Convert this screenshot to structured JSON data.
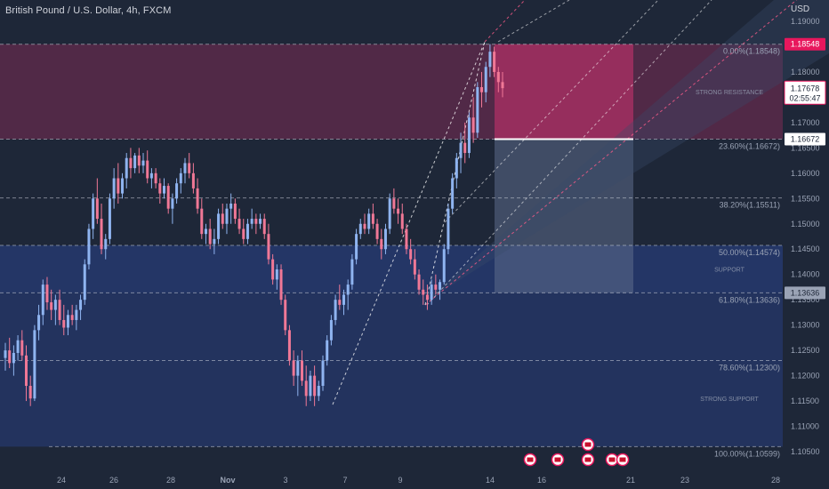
{
  "header": {
    "symbol_title": "British Pound / U.S. Dollar, 4h, FXCM",
    "currency": "USD"
  },
  "colors": {
    "background": "#1e2738",
    "up_candle": "#8fb4f0",
    "down_candle": "#f07896",
    "resistance_zone": "#5a2a4a",
    "support_zone": "#25386b",
    "short_target": "#a72f63",
    "short_risk": "#5c6b8a",
    "channel_fill": "#3a4a6b",
    "channel_line": "#ff5c8a",
    "trend_line": "#ffffff",
    "current_price_tag": "#e8175d",
    "axis_text": "#9aa3b5"
  },
  "chart_data": {
    "type": "candlestick",
    "price_axis": {
      "ticks": [
        "1.19000",
        "1.18000",
        "1.17000",
        "1.16500",
        "1.16000",
        "1.15500",
        "1.15000",
        "1.14500",
        "1.14000",
        "1.13500",
        "1.13000",
        "1.12500",
        "1.12000",
        "1.11500",
        "1.11000",
        "1.10500"
      ],
      "range": [
        1.103,
        1.193
      ]
    },
    "time_axis": {
      "ticks": [
        "24",
        "26",
        "28",
        "Nov",
        "3",
        "7",
        "9",
        "14",
        "16",
        "21",
        "23",
        "28"
      ]
    },
    "price_tags": [
      {
        "label": "1.18548",
        "value": 1.18548,
        "style": "pink"
      },
      {
        "label": "1.17678",
        "sublabel": "02:55:47",
        "value": 1.17678,
        "style": "current"
      },
      {
        "label": "1.16672",
        "value": 1.16672,
        "style": "white"
      },
      {
        "label": "1.13636",
        "value": 1.13636,
        "style": "grey"
      }
    ],
    "fib_levels": [
      {
        "label": "0.00%(1.18548)",
        "value": 1.18548
      },
      {
        "label": "23.60%(1.16672)",
        "value": 1.16672
      },
      {
        "label": "38.20%(1.15511)",
        "value": 1.15511
      },
      {
        "label": "50.00%(1.14574)",
        "value": 1.14574
      },
      {
        "label": "61.80%(1.13636)",
        "value": 1.13636
      },
      {
        "label": "78.60%(1.12300)",
        "value": 1.123
      },
      {
        "label": "100.00%(1.10599)",
        "value": 1.10599
      }
    ],
    "zones": [
      {
        "label": "STRONG RESISTANCE",
        "from": 1.18548,
        "to": 1.16672,
        "kind": "resistance"
      },
      {
        "label": "SUPPORT",
        "from": 1.14574,
        "to": 1.13636,
        "kind": "support"
      },
      {
        "label": "STRONG SUPPORT",
        "from": 1.13636,
        "to": 1.10599,
        "kind": "support"
      }
    ],
    "short_position": {
      "entry": 1.16672,
      "stop": 1.18548,
      "target": 1.13636
    },
    "candles": [
      [
        1.1235,
        1.1265,
        1.121,
        1.125
      ],
      [
        1.125,
        1.1275,
        1.1215,
        1.1225
      ],
      [
        1.1225,
        1.126,
        1.12,
        1.1245
      ],
      [
        1.1245,
        1.128,
        1.123,
        1.127
      ],
      [
        1.127,
        1.129,
        1.123,
        1.124
      ],
      [
        1.124,
        1.126,
        1.115,
        1.118
      ],
      [
        1.118,
        1.12,
        1.114,
        1.1155
      ],
      [
        1.1155,
        1.13,
        1.115,
        1.129
      ],
      [
        1.129,
        1.134,
        1.127,
        1.132
      ],
      [
        1.132,
        1.139,
        1.13,
        1.138
      ],
      [
        1.138,
        1.1395,
        1.133,
        1.1345
      ],
      [
        1.1345,
        1.137,
        1.131,
        1.133
      ],
      [
        1.133,
        1.136,
        1.13,
        1.135
      ],
      [
        1.135,
        1.137,
        1.13,
        1.131
      ],
      [
        1.131,
        1.134,
        1.128,
        1.1295
      ],
      [
        1.1295,
        1.133,
        1.128,
        1.132
      ],
      [
        1.132,
        1.134,
        1.13,
        1.131
      ],
      [
        1.131,
        1.134,
        1.129,
        1.133
      ],
      [
        1.133,
        1.136,
        1.131,
        1.135
      ],
      [
        1.135,
        1.143,
        1.134,
        1.142
      ],
      [
        1.142,
        1.15,
        1.141,
        1.149
      ],
      [
        1.149,
        1.156,
        1.147,
        1.155
      ],
      [
        1.155,
        1.159,
        1.15,
        1.151
      ],
      [
        1.151,
        1.154,
        1.144,
        1.145
      ],
      [
        1.145,
        1.148,
        1.143,
        1.147
      ],
      [
        1.147,
        1.156,
        1.146,
        1.155
      ],
      [
        1.155,
        1.161,
        1.153,
        1.159
      ],
      [
        1.159,
        1.162,
        1.154,
        1.156
      ],
      [
        1.156,
        1.16,
        1.155,
        1.159
      ],
      [
        1.159,
        1.164,
        1.157,
        1.163
      ],
      [
        1.163,
        1.165,
        1.159,
        1.161
      ],
      [
        1.161,
        1.164,
        1.16,
        1.1635
      ],
      [
        1.1635,
        1.165,
        1.16,
        1.1615
      ],
      [
        1.1615,
        1.164,
        1.16,
        1.1625
      ],
      [
        1.1625,
        1.1645,
        1.158,
        1.159
      ],
      [
        1.159,
        1.161,
        1.157,
        1.16
      ],
      [
        1.16,
        1.161,
        1.157,
        1.158
      ],
      [
        1.158,
        1.159,
        1.154,
        1.156
      ],
      [
        1.156,
        1.159,
        1.155,
        1.1575
      ],
      [
        1.1575,
        1.158,
        1.152,
        1.153
      ],
      [
        1.153,
        1.156,
        1.15,
        1.155
      ],
      [
        1.155,
        1.159,
        1.154,
        1.158
      ],
      [
        1.158,
        1.161,
        1.156,
        1.16
      ],
      [
        1.16,
        1.163,
        1.158,
        1.162
      ],
      [
        1.162,
        1.164,
        1.159,
        1.16
      ],
      [
        1.16,
        1.162,
        1.156,
        1.157
      ],
      [
        1.157,
        1.159,
        1.152,
        1.153
      ],
      [
        1.153,
        1.155,
        1.147,
        1.148
      ],
      [
        1.148,
        1.15,
        1.146,
        1.149
      ],
      [
        1.149,
        1.151,
        1.145,
        1.146
      ],
      [
        1.146,
        1.149,
        1.144,
        1.147
      ],
      [
        1.147,
        1.153,
        1.146,
        1.152
      ],
      [
        1.152,
        1.154,
        1.149,
        1.15
      ],
      [
        1.15,
        1.154,
        1.148,
        1.153
      ],
      [
        1.153,
        1.156,
        1.15,
        1.154
      ],
      [
        1.154,
        1.155,
        1.15,
        1.151
      ],
      [
        1.151,
        1.153,
        1.148,
        1.149
      ],
      [
        1.149,
        1.151,
        1.146,
        1.147
      ],
      [
        1.147,
        1.151,
        1.146,
        1.15
      ],
      [
        1.15,
        1.153,
        1.149,
        1.151
      ],
      [
        1.151,
        1.152,
        1.148,
        1.15
      ],
      [
        1.15,
        1.152,
        1.149,
        1.151
      ],
      [
        1.151,
        1.152,
        1.147,
        1.148
      ],
      [
        1.148,
        1.15,
        1.142,
        1.143
      ],
      [
        1.143,
        1.144,
        1.138,
        1.139
      ],
      [
        1.139,
        1.142,
        1.137,
        1.141
      ],
      [
        1.141,
        1.142,
        1.134,
        1.135
      ],
      [
        1.135,
        1.136,
        1.128,
        1.129
      ],
      [
        1.129,
        1.13,
        1.122,
        1.123
      ],
      [
        1.123,
        1.125,
        1.118,
        1.12
      ],
      [
        1.12,
        1.124,
        1.116,
        1.123
      ],
      [
        1.123,
        1.125,
        1.118,
        1.119
      ],
      [
        1.119,
        1.122,
        1.114,
        1.116
      ],
      [
        1.116,
        1.121,
        1.115,
        1.12
      ],
      [
        1.12,
        1.122,
        1.114,
        1.116
      ],
      [
        1.116,
        1.119,
        1.115,
        1.118
      ],
      [
        1.118,
        1.124,
        1.117,
        1.123
      ],
      [
        1.123,
        1.128,
        1.122,
        1.127
      ],
      [
        1.127,
        1.132,
        1.126,
        1.131
      ],
      [
        1.131,
        1.136,
        1.13,
        1.135
      ],
      [
        1.135,
        1.138,
        1.133,
        1.134
      ],
      [
        1.134,
        1.137,
        1.132,
        1.136
      ],
      [
        1.136,
        1.139,
        1.133,
        1.138
      ],
      [
        1.138,
        1.144,
        1.137,
        1.143
      ],
      [
        1.143,
        1.149,
        1.142,
        1.148
      ],
      [
        1.148,
        1.151,
        1.147,
        1.15
      ],
      [
        1.15,
        1.152,
        1.148,
        1.149
      ],
      [
        1.149,
        1.153,
        1.148,
        1.152
      ],
      [
        1.152,
        1.154,
        1.149,
        1.15
      ],
      [
        1.15,
        1.151,
        1.146,
        1.147
      ],
      [
        1.147,
        1.149,
        1.143,
        1.145
      ],
      [
        1.145,
        1.15,
        1.144,
        1.149
      ],
      [
        1.149,
        1.156,
        1.148,
        1.155
      ],
      [
        1.155,
        1.157,
        1.152,
        1.153
      ],
      [
        1.153,
        1.155,
        1.15,
        1.152
      ],
      [
        1.152,
        1.154,
        1.148,
        1.149
      ],
      [
        1.149,
        1.15,
        1.144,
        1.145
      ],
      [
        1.145,
        1.147,
        1.142,
        1.143
      ],
      [
        1.143,
        1.145,
        1.139,
        1.14
      ],
      [
        1.14,
        1.141,
        1.136,
        1.137
      ],
      [
        1.137,
        1.139,
        1.134,
        1.136
      ],
      [
        1.136,
        1.138,
        1.133,
        1.135
      ],
      [
        1.135,
        1.139,
        1.134,
        1.138
      ],
      [
        1.138,
        1.14,
        1.136,
        1.137
      ],
      [
        1.137,
        1.139,
        1.135,
        1.1385
      ],
      [
        1.1385,
        1.146,
        1.138,
        1.145
      ],
      [
        1.145,
        1.154,
        1.144,
        1.153
      ],
      [
        1.153,
        1.16,
        1.152,
        1.159
      ],
      [
        1.159,
        1.164,
        1.157,
        1.163
      ],
      [
        1.163,
        1.168,
        1.16,
        1.166
      ],
      [
        1.166,
        1.17,
        1.162,
        1.164
      ],
      [
        1.164,
        1.172,
        1.163,
        1.171
      ],
      [
        1.171,
        1.175,
        1.166,
        1.168
      ],
      [
        1.168,
        1.178,
        1.167,
        1.177
      ],
      [
        1.177,
        1.18,
        1.173,
        1.176
      ],
      [
        1.176,
        1.182,
        1.174,
        1.181
      ],
      [
        1.181,
        1.1855,
        1.179,
        1.184
      ],
      [
        1.184,
        1.185,
        1.179,
        1.18
      ],
      [
        1.18,
        1.181,
        1.176,
        1.178
      ],
      [
        1.178,
        1.18,
        1.175,
        1.1768
      ]
    ]
  }
}
